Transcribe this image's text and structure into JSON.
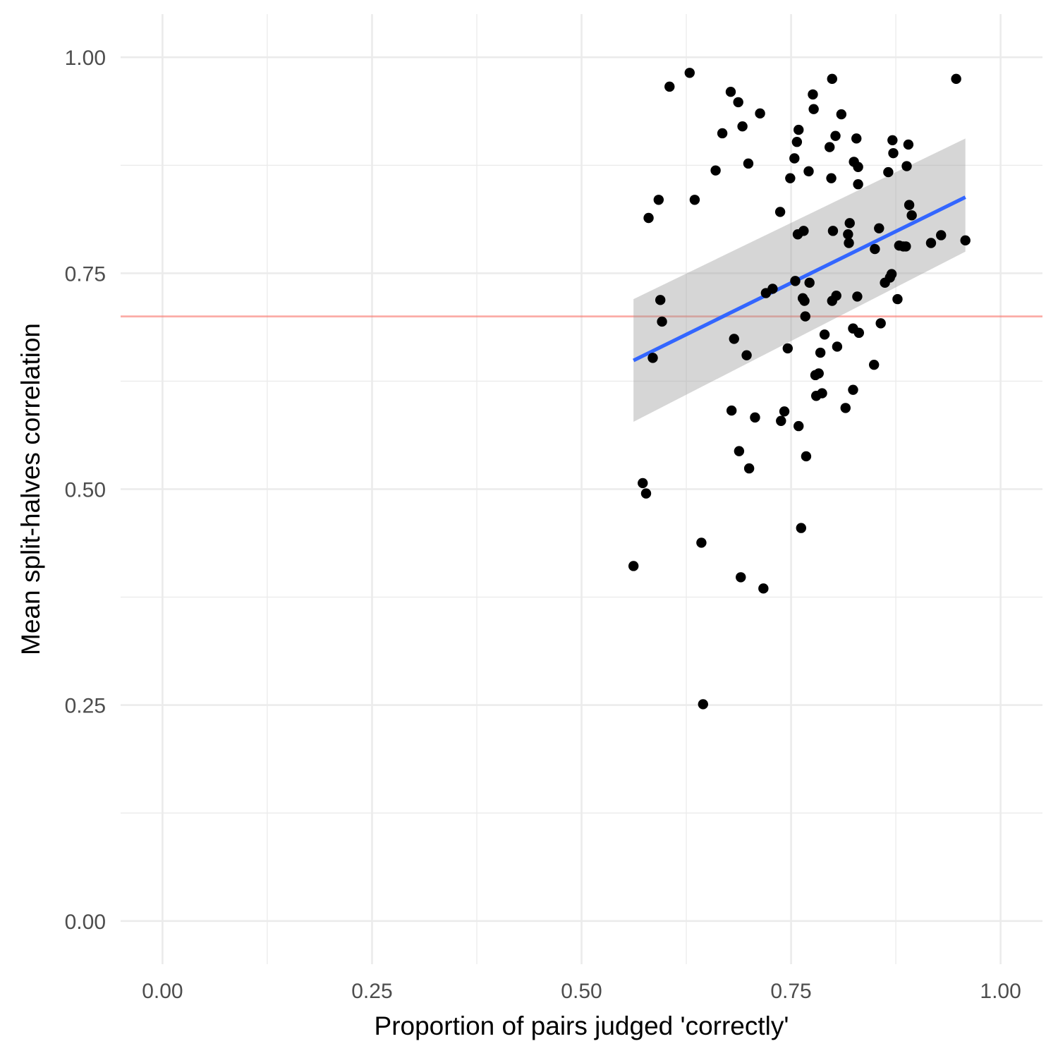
{
  "chart_data": {
    "type": "scatter",
    "title": "",
    "xlabel": "Proportion of pairs judged 'correctly'",
    "ylabel": "Mean split-halves correlation",
    "xlim": [
      -0.05,
      1.05
    ],
    "ylim": [
      -0.05,
      1.05
    ],
    "x_ticks": [
      "0.00",
      "0.25",
      "0.50",
      "0.75",
      "1.00"
    ],
    "y_ticks": [
      "0.00",
      "0.25",
      "0.50",
      "0.75",
      "1.00"
    ],
    "grid": true,
    "legend": "none",
    "colors": {
      "points": "#000000",
      "fit_line": "#3366ff",
      "ribbon": "#999999",
      "reference_line": "#f8766d",
      "grid": "#ebebeb"
    },
    "reference_line": {
      "orientation": "horizontal",
      "y": 0.7
    },
    "fit": {
      "method": "linear",
      "x": [
        0.562,
        0.958
      ],
      "y": [
        0.649,
        0.838
      ],
      "ribbon_lower": [
        0.578,
        0.775
      ],
      "ribbon_upper": [
        0.72,
        0.906
      ]
    },
    "series": [
      {
        "points": [
          [
            0.562,
            0.411
          ],
          [
            0.573,
            0.507
          ],
          [
            0.577,
            0.495
          ],
          [
            0.58,
            0.814
          ],
          [
            0.585,
            0.652
          ],
          [
            0.592,
            0.835
          ],
          [
            0.594,
            0.719
          ],
          [
            0.596,
            0.694
          ],
          [
            0.605,
            0.966
          ],
          [
            0.629,
            0.982
          ],
          [
            0.635,
            0.835
          ],
          [
            0.643,
            0.438
          ],
          [
            0.645,
            0.251
          ],
          [
            0.66,
            0.869
          ],
          [
            0.668,
            0.912
          ],
          [
            0.678,
            0.96
          ],
          [
            0.679,
            0.591
          ],
          [
            0.682,
            0.674
          ],
          [
            0.687,
            0.948
          ],
          [
            0.688,
            0.544
          ],
          [
            0.69,
            0.398
          ],
          [
            0.692,
            0.92
          ],
          [
            0.697,
            0.655
          ],
          [
            0.699,
            0.877
          ],
          [
            0.7,
            0.524
          ],
          [
            0.707,
            0.583
          ],
          [
            0.713,
            0.935
          ],
          [
            0.717,
            0.385
          ],
          [
            0.72,
            0.727
          ],
          [
            0.728,
            0.732
          ],
          [
            0.737,
            0.821
          ],
          [
            0.738,
            0.579
          ],
          [
            0.742,
            0.59
          ],
          [
            0.746,
            0.663
          ],
          [
            0.749,
            0.86
          ],
          [
            0.754,
            0.883
          ],
          [
            0.755,
            0.741
          ],
          [
            0.757,
            0.902
          ],
          [
            0.758,
            0.795
          ],
          [
            0.759,
            0.916
          ],
          [
            0.759,
            0.573
          ],
          [
            0.762,
            0.455
          ],
          [
            0.764,
            0.721
          ],
          [
            0.765,
            0.799
          ],
          [
            0.766,
            0.718
          ],
          [
            0.767,
            0.7
          ],
          [
            0.768,
            0.538
          ],
          [
            0.771,
            0.868
          ],
          [
            0.772,
            0.739
          ],
          [
            0.776,
            0.957
          ],
          [
            0.777,
            0.94
          ],
          [
            0.779,
            0.632
          ],
          [
            0.78,
            0.608
          ],
          [
            0.783,
            0.634
          ],
          [
            0.785,
            0.658
          ],
          [
            0.787,
            0.611
          ],
          [
            0.79,
            0.679
          ],
          [
            0.796,
            0.896
          ],
          [
            0.798,
            0.86
          ],
          [
            0.799,
            0.718
          ],
          [
            0.799,
            0.975
          ],
          [
            0.8,
            0.799
          ],
          [
            0.803,
            0.909
          ],
          [
            0.804,
            0.724
          ],
          [
            0.805,
            0.665
          ],
          [
            0.81,
            0.934
          ],
          [
            0.815,
            0.594
          ],
          [
            0.818,
            0.795
          ],
          [
            0.819,
            0.785
          ],
          [
            0.82,
            0.808
          ],
          [
            0.824,
            0.615
          ],
          [
            0.824,
            0.686
          ],
          [
            0.825,
            0.879
          ],
          [
            0.828,
            0.906
          ],
          [
            0.829,
            0.723
          ],
          [
            0.83,
            0.853
          ],
          [
            0.83,
            0.873
          ],
          [
            0.831,
            0.681
          ],
          [
            0.849,
            0.644
          ],
          [
            0.85,
            0.778
          ],
          [
            0.855,
            0.802
          ],
          [
            0.857,
            0.692
          ],
          [
            0.862,
            0.739
          ],
          [
            0.866,
            0.867
          ],
          [
            0.868,
            0.745
          ],
          [
            0.87,
            0.749
          ],
          [
            0.871,
            0.904
          ],
          [
            0.872,
            0.889
          ],
          [
            0.877,
            0.72
          ],
          [
            0.879,
            0.782
          ],
          [
            0.884,
            0.781
          ],
          [
            0.887,
            0.781
          ],
          [
            0.888,
            0.874
          ],
          [
            0.89,
            0.899
          ],
          [
            0.891,
            0.829
          ],
          [
            0.894,
            0.817
          ],
          [
            0.917,
            0.785
          ],
          [
            0.929,
            0.794
          ],
          [
            0.947,
            0.975
          ],
          [
            0.958,
            0.788
          ]
        ]
      }
    ]
  }
}
